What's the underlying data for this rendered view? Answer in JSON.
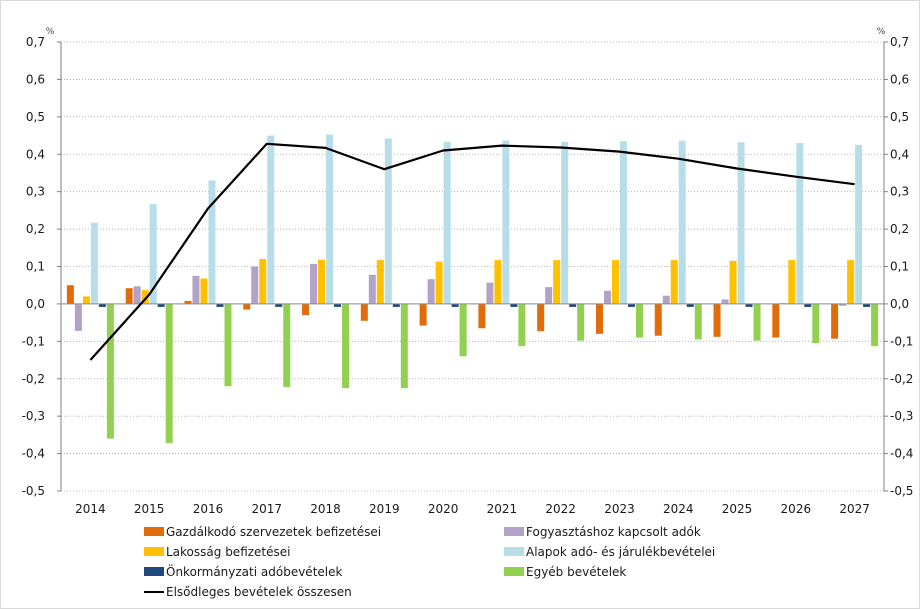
{
  "chart_data": {
    "type": "bar",
    "unit_left": "%",
    "unit_right": "%",
    "ylim": [
      -0.5,
      0.7
    ],
    "yticks": [
      "-0,5",
      "-0,4",
      "-0,3",
      "-0,2",
      "-0,1",
      "0,0",
      "0,1",
      "0,2",
      "0,3",
      "0,4",
      "0,5",
      "0,6",
      "0,7"
    ],
    "grid": true,
    "legend_position": "bottom",
    "categories": [
      "2014",
      "2015",
      "2016",
      "2017",
      "2018",
      "2019",
      "2020",
      "2021",
      "2022",
      "2023",
      "2024",
      "2025",
      "2026",
      "2027"
    ],
    "series": [
      {
        "name": "Gazdálkodó szervezetek befizetései",
        "type": "bar",
        "color": "#e36c0a",
        "values": [
          0.05,
          0.042,
          0.008,
          -0.015,
          -0.03,
          -0.045,
          -0.058,
          -0.065,
          -0.073,
          -0.08,
          -0.085,
          -0.088,
          -0.09,
          -0.093
        ]
      },
      {
        "name": "Fogyasztáshoz kapcsolt adók",
        "type": "bar",
        "color": "#b3a2c7",
        "values": [
          -0.072,
          0.047,
          0.075,
          0.1,
          0.107,
          0.078,
          0.066,
          0.057,
          0.045,
          0.035,
          0.022,
          0.012,
          0.002,
          -0.005
        ]
      },
      {
        "name": "Lakosság befizetései",
        "type": "bar",
        "color": "#ffc000",
        "values": [
          0.02,
          0.037,
          0.068,
          0.12,
          0.118,
          0.117,
          0.113,
          0.117,
          0.117,
          0.117,
          0.117,
          0.115,
          0.117,
          0.117
        ]
      },
      {
        "name": "Alapok adó- és járulékbevételei",
        "type": "bar",
        "color": "#b7dee8",
        "values": [
          0.217,
          0.267,
          0.33,
          0.45,
          0.453,
          0.442,
          0.433,
          0.437,
          0.433,
          0.435,
          0.436,
          0.432,
          0.43,
          0.425
        ]
      },
      {
        "name": "Önkormányzati adóbevételek",
        "type": "bar",
        "color": "#1f497d",
        "values": [
          -0.008,
          -0.008,
          -0.008,
          -0.008,
          -0.008,
          -0.008,
          -0.008,
          -0.008,
          -0.008,
          -0.008,
          -0.008,
          -0.008,
          -0.008,
          -0.008
        ]
      },
      {
        "name": "Egyéb bevételek",
        "type": "bar",
        "color": "#92d050",
        "values": [
          -0.36,
          -0.372,
          -0.22,
          -0.222,
          -0.225,
          -0.225,
          -0.14,
          -0.113,
          -0.098,
          -0.09,
          -0.095,
          -0.098,
          -0.105,
          -0.113
        ]
      },
      {
        "name": "Elsődleges bevételek összesen",
        "type": "line",
        "color": "#000000",
        "values": [
          -0.15,
          0.025,
          0.255,
          0.428,
          0.417,
          0.36,
          0.41,
          0.423,
          0.418,
          0.407,
          0.388,
          0.362,
          0.34,
          0.32
        ]
      }
    ]
  }
}
